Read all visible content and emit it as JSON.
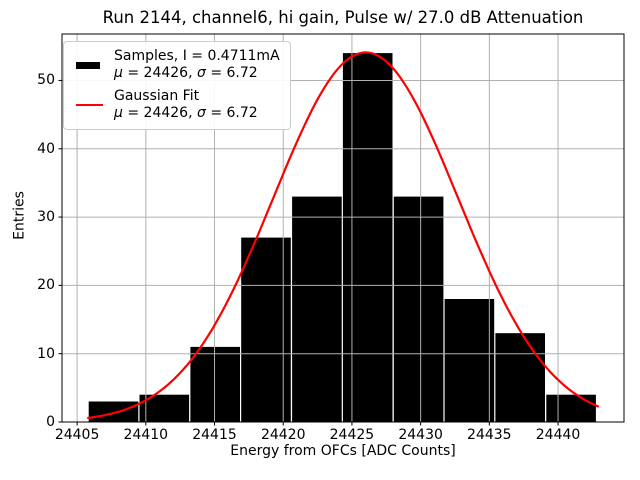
{
  "chart_data": {
    "type": "bar",
    "subtype": "histogram-with-gaussian-fit",
    "title": "Run 2144, channel6, hi gain, Pulse w/ 27.0 dB Attenuation",
    "xlabel": "Energy from OFCs [ADC Counts]",
    "ylabel": "Entries",
    "xlim": [
      24403.9,
      24444.8
    ],
    "ylim": [
      0,
      56.8
    ],
    "xticks": [
      24405,
      24410,
      24415,
      24420,
      24425,
      24430,
      24435,
      24440
    ],
    "yticks": [
      0,
      10,
      20,
      30,
      40,
      50
    ],
    "grid": true,
    "grid_above_bars": true,
    "legend_position": "upper-left",
    "histogram": {
      "bin_start": 24405.8,
      "bin_width": 3.7,
      "bin_edges": [
        24405.8,
        24409.5,
        24413.2,
        24416.9,
        24420.6,
        24424.3,
        24428.0,
        24431.7,
        24435.4,
        24439.1,
        24442.8
      ],
      "counts": [
        3,
        4,
        11,
        27,
        33,
        54,
        33,
        18,
        13,
        4
      ],
      "total_entries": 200,
      "color": "#000000"
    },
    "gaussian_fit": {
      "mu": 24426,
      "sigma": 6.72,
      "amplitude": 54.1,
      "x_start": 24405.8,
      "x_end": 24442.9,
      "color": "#ff0000"
    }
  },
  "legend": {
    "entries": [
      {
        "swatch": "black-bar-icon",
        "line1": "Samples, I = 0.4711mA",
        "mu_symbol": "μ",
        "mu_rest": " = 24426, ",
        "sigma_symbol": "σ",
        "sigma_rest": " = 6.72"
      },
      {
        "swatch": "red-line-icon",
        "line1": "Gaussian Fit",
        "mu_symbol": "μ",
        "mu_rest": " = 24426, ",
        "sigma_symbol": "σ",
        "sigma_rest": " = 6.72"
      }
    ]
  },
  "colors": {
    "bars": "#000000",
    "fit_line": "#ff0000",
    "grid": "#b0b0b0",
    "axes": "#000000",
    "legend_border": "#cccccc",
    "background": "#ffffff"
  }
}
